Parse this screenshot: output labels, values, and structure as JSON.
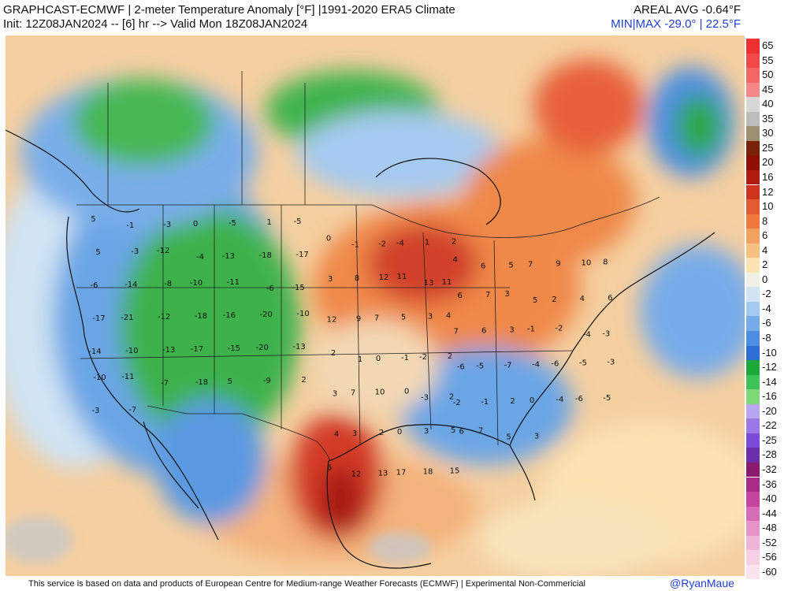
{
  "header": {
    "title_line1": "GRAPHCAST-ECMWF | 2-meter Temperature Anomaly [°F] |1991-2020 ERA5 Climate",
    "title_line2": "Init: 12Z08JAN2024 -- [6] hr --> Valid Mon 18Z08JAN2024",
    "areal_avg": "AREAL AVG -0.64°F",
    "min_max": "MIN|MAX -29.0° | 22.5°F"
  },
  "colors": {
    "ocean_base": "#f5cfa0",
    "land_base": "#f9d9a8",
    "cold_blue": "#4f95e0",
    "cold_green": "#3bb24a",
    "warm_orange": "#f08848",
    "warm_red": "#c8282a",
    "credit": "#1f3fd6"
  },
  "colorbar": {
    "labels": [
      "65",
      "55",
      "50",
      "45",
      "40",
      "35",
      "30",
      "25",
      "20",
      "16",
      "12",
      "10",
      "8",
      "6",
      "4",
      "2",
      "0",
      "-2",
      "-4",
      "-6",
      "-8",
      "-10",
      "-12",
      "-14",
      "-16",
      "-20",
      "-22",
      "-25",
      "-28",
      "-32",
      "-36",
      "-40",
      "-44",
      "-48",
      "-52",
      "-56",
      "-60"
    ],
    "colors": [
      "#ee3030",
      "#f04848",
      "#f26666",
      "#f48888",
      "#d7d7d7",
      "#bcbcbc",
      "#9b9170",
      "#7a2308",
      "#8e1005",
      "#b01a10",
      "#d03420",
      "#e25a30",
      "#f07a3e",
      "#f3a060",
      "#f6c083",
      "#fbe3b2",
      "#f0f0e6",
      "#d2e4f4",
      "#a4caf0",
      "#77acea",
      "#4d8ee2",
      "#2f6fd4",
      "#1da83c",
      "#3ec456",
      "#7ed878",
      "#b7a6f2",
      "#9b78e6",
      "#7a4cd6",
      "#6a2fa8",
      "#8a1a6e",
      "#aa2a88",
      "#c4449e",
      "#d66cb6",
      "#e694c8",
      "#f0b4d8",
      "#f7d0e6",
      "#fbe4f0"
    ]
  },
  "values": {
    "westerly": [
      "5",
      "-1",
      "-3",
      "0",
      "-5",
      "1",
      "-5",
      "5",
      "-3",
      "-12",
      "-4",
      "-13",
      "-18",
      "-17",
      "-6",
      "-14",
      "-8",
      "-10",
      "-11",
      "-6",
      "-15",
      "-17",
      "-21",
      "-12",
      "-18",
      "-16",
      "-20",
      "-10",
      "-14",
      "-10",
      "-13",
      "-17",
      "-15",
      "-20",
      "-13",
      "-10",
      "-11",
      "-7",
      "-18",
      "5",
      "-9",
      "2",
      "-3",
      "-7"
    ],
    "central": [
      "0",
      "-1",
      "-2",
      "-4",
      "1",
      "2",
      "3",
      "8",
      "12",
      "11",
      "13",
      "11",
      "12",
      "9",
      "7",
      "5",
      "3",
      "4",
      "2",
      "1",
      "0",
      "-1",
      "-2",
      "2",
      "3",
      "7",
      "10",
      "0",
      "-3",
      "2",
      "4",
      "3",
      "2",
      "0",
      "3",
      "5",
      "6",
      "12",
      "13",
      "17",
      "18",
      "15"
    ],
    "eastern": [
      "4",
      "6",
      "5",
      "7",
      "9",
      "10",
      "8",
      "6",
      "7",
      "3",
      "5",
      "2",
      "4",
      "6",
      "7",
      "6",
      "3",
      "-1",
      "-2",
      "-4",
      "-3",
      "-6",
      "-5",
      "-7",
      "-4",
      "-6",
      "-5",
      "-3",
      "-2",
      "-1",
      "2",
      "0",
      "-4",
      "-6",
      "-5",
      "6",
      "7",
      "5",
      "3"
    ]
  },
  "footer": {
    "disclaimer": "This service is based on data and products of European Centre for Medium-range Weather Forecasts (ECMWF) | Experimental Non-Commericial",
    "credit": "@RyanMaue"
  }
}
